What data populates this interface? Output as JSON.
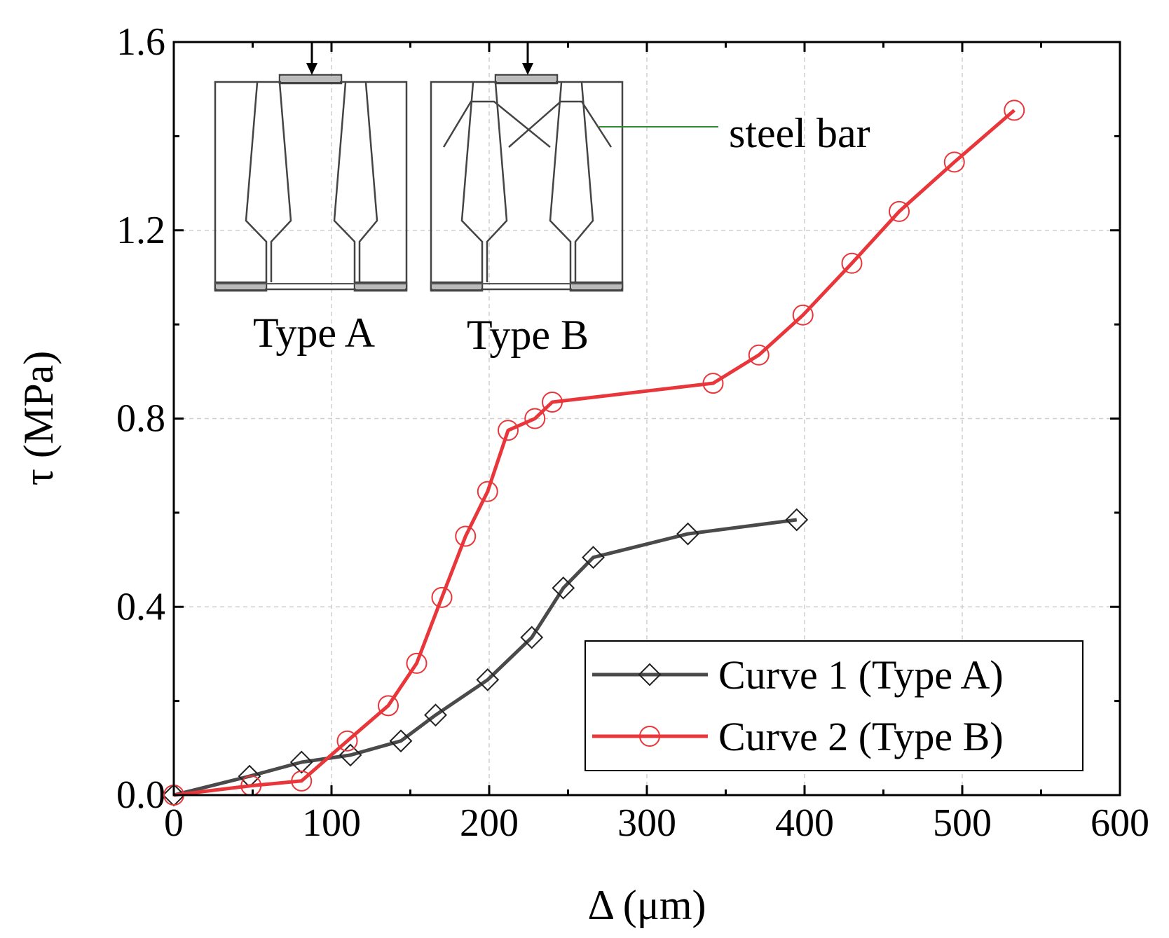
{
  "chart_data": {
    "type": "line",
    "title": "",
    "xlabel": "Δ (μm)",
    "ylabel": "τ (MPa)",
    "xlim": [
      0,
      600
    ],
    "ylim": [
      0,
      1.6
    ],
    "xticks": [
      0,
      100,
      200,
      300,
      400,
      500,
      600
    ],
    "xtick_labels": [
      "0",
      "100",
      "200",
      "300",
      "400",
      "500",
      "600"
    ],
    "yticks": [
      0,
      0.4,
      0.8,
      1.2,
      1.6
    ],
    "ytick_labels": [
      "0.0",
      "0.4",
      "0.8",
      "1.2",
      "1.6"
    ],
    "grid": true,
    "legend_position": "bottom-right",
    "series": [
      {
        "name": "Curve 1 (Type A)",
        "color": "#4a4a4a",
        "marker": "diamond",
        "x": [
          0,
          48,
          81,
          112,
          144,
          166,
          199,
          227,
          247,
          266,
          326,
          395
        ],
        "y": [
          0,
          0.04,
          0.07,
          0.085,
          0.115,
          0.17,
          0.245,
          0.335,
          0.44,
          0.505,
          0.555,
          0.585
        ]
      },
      {
        "name": "Curve 2 (Type B)",
        "color": "#e8363a",
        "marker": "circle",
        "x": [
          0,
          49,
          81,
          110,
          136,
          154,
          170,
          185,
          199,
          212,
          229,
          240,
          342,
          371,
          399,
          430,
          460,
          495,
          533
        ],
        "y": [
          0,
          0.02,
          0.03,
          0.115,
          0.19,
          0.28,
          0.42,
          0.55,
          0.645,
          0.775,
          0.8,
          0.835,
          0.875,
          0.935,
          1.02,
          1.13,
          1.24,
          1.345,
          1.455
        ]
      }
    ],
    "annotations": {
      "inset_label_a": "Type A",
      "inset_label_b": "Type B",
      "callout": "steel bar"
    }
  }
}
